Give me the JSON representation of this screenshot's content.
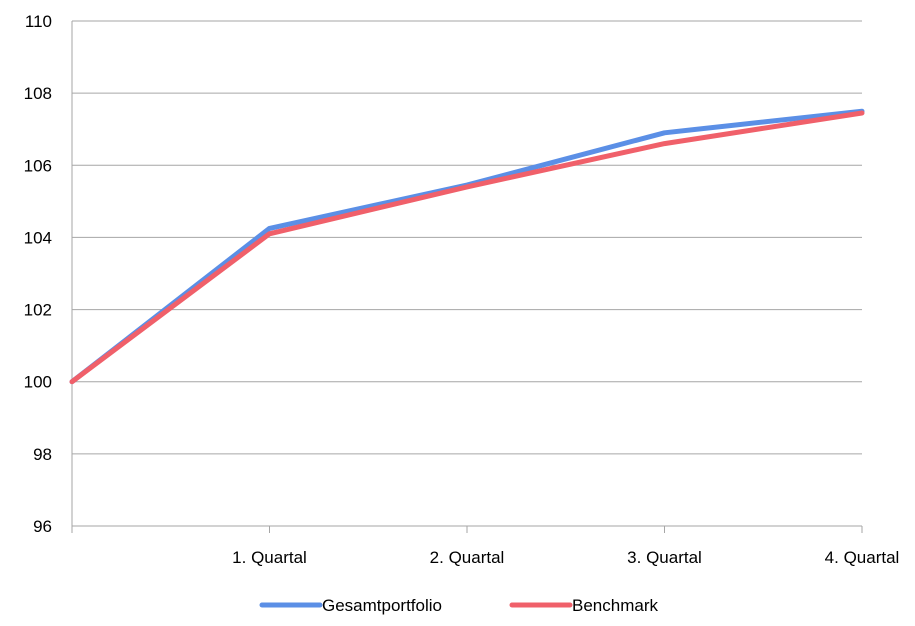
{
  "chart_data": {
    "type": "line",
    "categories": [
      "",
      "1. Quartal",
      "2. Quartal",
      "3. Quartal",
      "4. Quartal"
    ],
    "series": [
      {
        "name": "Gesamtportfolio",
        "color": "#5b8fe6",
        "values": [
          100,
          104.25,
          105.45,
          106.9,
          107.5
        ]
      },
      {
        "name": "Benchmark",
        "color": "#f0606a",
        "values": [
          100,
          104.1,
          105.4,
          106.6,
          107.45
        ]
      }
    ],
    "ylim": [
      96,
      110
    ],
    "yticks": [
      "96",
      "98",
      "100",
      "102",
      "104",
      "106",
      "108",
      "110"
    ],
    "grid": true,
    "legend_position": "bottom"
  }
}
